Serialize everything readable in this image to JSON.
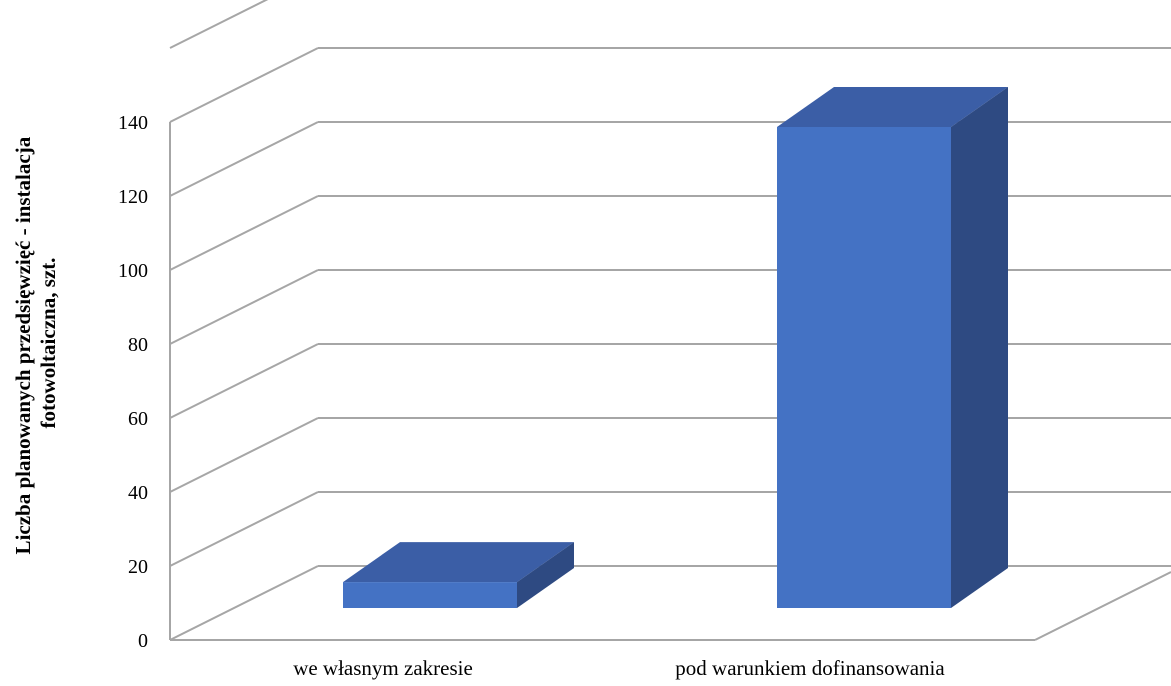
{
  "chart_data": {
    "type": "bar",
    "style": "3d-column",
    "categories": [
      "we własnym zakresie",
      "pod warunkiem dofinansowania"
    ],
    "values": [
      7,
      130
    ],
    "ylabel": [
      "Liczba planowanych przedsięwzięć - instalacja",
      "fotowoltaiczna, szt."
    ],
    "xlabel": "",
    "title": "",
    "ylim": [
      0,
      160
    ],
    "yticks": [
      0,
      20,
      40,
      60,
      80,
      100,
      120,
      140
    ],
    "grid": true,
    "legend": "none"
  },
  "colors": {
    "bar_front": "#4472C4",
    "bar_top": "#3B5EA6",
    "bar_side": "#2E4A82",
    "grid": "#a6a6a6"
  }
}
